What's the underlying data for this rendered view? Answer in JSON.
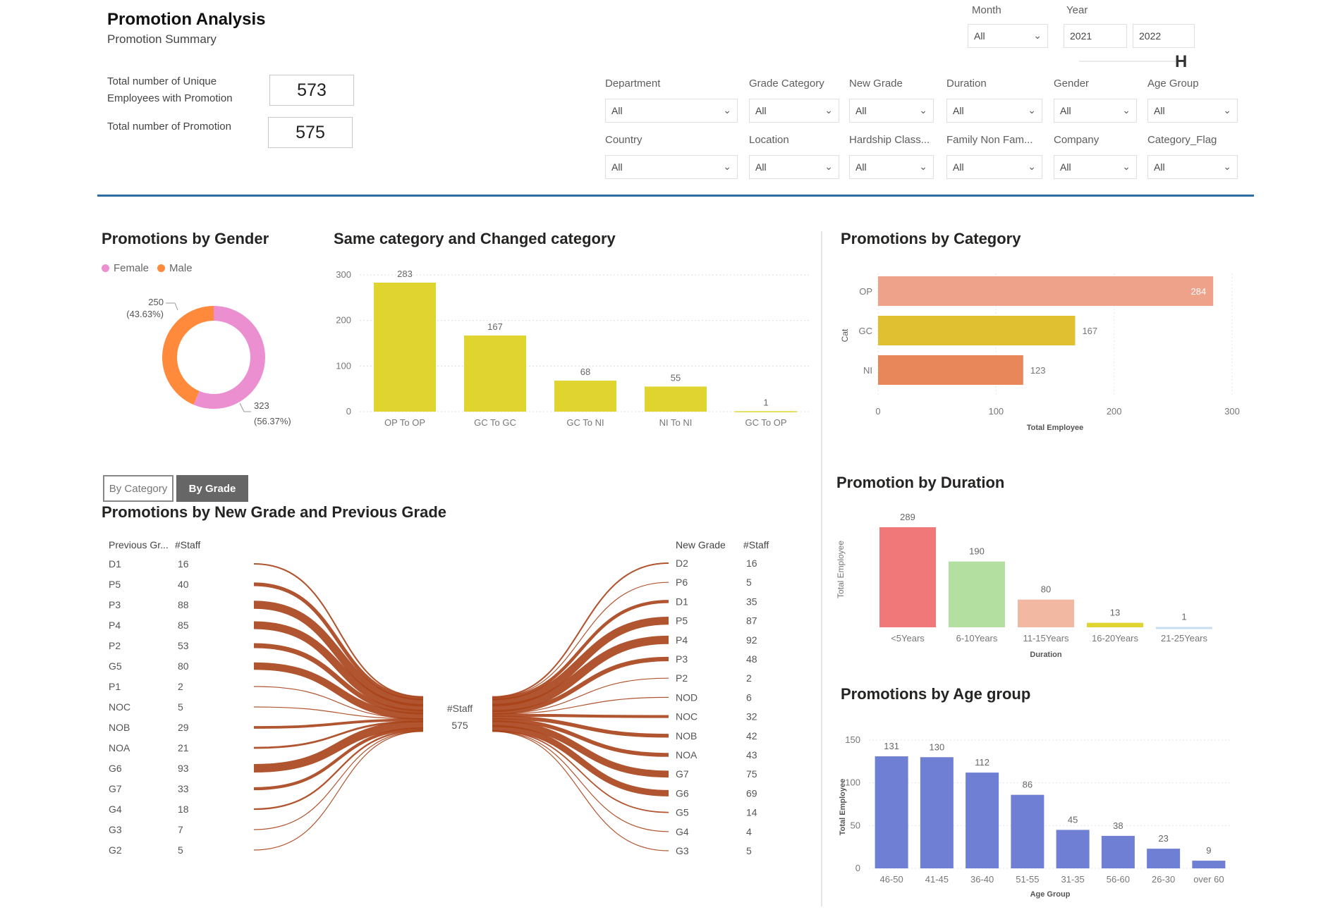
{
  "header": {
    "title": "Promotion Analysis",
    "subtitle": "Promotion Summary",
    "kpis": [
      {
        "label": "Total number of Unique Employees with Promotion",
        "value": "573"
      },
      {
        "label": "Total number of Promotion",
        "value": "575"
      }
    ]
  },
  "filters": {
    "month": {
      "label": "Month",
      "value": "All"
    },
    "year": {
      "label": "Year",
      "from": "2021",
      "to": "2022"
    },
    "row1": [
      {
        "label": "Department",
        "value": "All"
      },
      {
        "label": "Grade Category",
        "value": "All"
      },
      {
        "label": "New Grade",
        "value": "All"
      },
      {
        "label": "Duration",
        "value": "All"
      },
      {
        "label": "Gender",
        "value": "All"
      },
      {
        "label": "Age Group",
        "value": "All"
      }
    ],
    "row2": [
      {
        "label": "Country",
        "value": "All"
      },
      {
        "label": "Location",
        "value": "All"
      },
      {
        "label": "Hardship Class...",
        "value": "All"
      },
      {
        "label": "Family Non Fam...",
        "value": "All"
      },
      {
        "label": "Company",
        "value": "All"
      },
      {
        "label": "Category_Flag",
        "value": "All"
      }
    ]
  },
  "toggle": {
    "by_category": "By Category",
    "by_grade": "By Grade"
  },
  "colors": {
    "accent_line": "#2e6ca4",
    "female": "#ec8fd1",
    "male": "#ff8a3c",
    "yellow": "#e0d530",
    "cat_op": "#eea28a",
    "cat_gc": "#e0c030",
    "cat_ni": "#e8875a",
    "dur": [
      "#f07878",
      "#b3e0a0",
      "#f2b8a2",
      "#e0d530",
      "#c7def0"
    ],
    "age": "#6f7fd3",
    "sankey": "#a9431a"
  },
  "chart_data": [
    {
      "id": "gender",
      "type": "pie",
      "title": "Promotions by Gender",
      "legend": [
        "Female",
        "Male"
      ],
      "slices": [
        {
          "name": "Male",
          "value": 250,
          "label": "250",
          "pct": "(43.63%)"
        },
        {
          "name": "Female",
          "value": 323,
          "label": "323",
          "pct": "(56.37%)"
        }
      ]
    },
    {
      "id": "category_change",
      "type": "bar",
      "title": "Same category and Changed category",
      "categories": [
        "OP To OP",
        "GC To GC",
        "GC To NI",
        "NI To NI",
        "GC To OP"
      ],
      "values": [
        283,
        167,
        68,
        55,
        1
      ],
      "ylim": [
        0,
        300
      ],
      "yticks": [
        "0",
        "100",
        "200",
        "300"
      ],
      "grid": true
    },
    {
      "id": "by_category",
      "type": "bar",
      "orientation": "horizontal",
      "title": "Promotions by Category",
      "categories": [
        "OP",
        "GC",
        "NI"
      ],
      "values": [
        284,
        167,
        123
      ],
      "xlabel": "Total Employee",
      "ylabel": "Cat",
      "xlim": [
        0,
        300
      ],
      "xticks": [
        "0",
        "100",
        "200",
        "300"
      ]
    },
    {
      "id": "duration",
      "type": "bar",
      "title": "Promotion by Duration",
      "categories": [
        "<5Years",
        "6-10Years",
        "11-15Years",
        "16-20Years",
        "21-25Years"
      ],
      "values": [
        289,
        190,
        80,
        13,
        1
      ],
      "xlabel": "Duration",
      "ylabel": "Total Employee"
    },
    {
      "id": "age",
      "type": "bar",
      "title": "Promotions by Age group",
      "categories": [
        "46-50",
        "41-45",
        "36-40",
        "51-55",
        "31-35",
        "56-60",
        "26-30",
        "over 60"
      ],
      "values": [
        131,
        130,
        112,
        86,
        45,
        38,
        23,
        9
      ],
      "xlabel": "Age Group",
      "ylabel": "Total Employee",
      "ylim": [
        0,
        150
      ],
      "yticks": [
        "0",
        "50",
        "100",
        "150"
      ]
    },
    {
      "id": "grade_flow",
      "type": "sankey",
      "title": "Promotions by New Grade and Previous Grade",
      "left_header": [
        "Previous Gr...",
        "#Staff"
      ],
      "right_header": [
        "New Grade",
        "#Staff"
      ],
      "center": {
        "label": "#Staff",
        "value": "575"
      },
      "previous": [
        {
          "grade": "D1",
          "staff": 16
        },
        {
          "grade": "P5",
          "staff": 40
        },
        {
          "grade": "P3",
          "staff": 88
        },
        {
          "grade": "P4",
          "staff": 85
        },
        {
          "grade": "P2",
          "staff": 53
        },
        {
          "grade": "G5",
          "staff": 80
        },
        {
          "grade": "P1",
          "staff": 2
        },
        {
          "grade": "NOC",
          "staff": 5
        },
        {
          "grade": "NOB",
          "staff": 29
        },
        {
          "grade": "NOA",
          "staff": 21
        },
        {
          "grade": "G6",
          "staff": 93
        },
        {
          "grade": "G7",
          "staff": 33
        },
        {
          "grade": "G4",
          "staff": 18
        },
        {
          "grade": "G3",
          "staff": 7
        },
        {
          "grade": "G2",
          "staff": 5
        }
      ],
      "new": [
        {
          "grade": "D2",
          "staff": 16
        },
        {
          "grade": "P6",
          "staff": 5
        },
        {
          "grade": "D1",
          "staff": 35
        },
        {
          "grade": "P5",
          "staff": 87
        },
        {
          "grade": "P4",
          "staff": 92
        },
        {
          "grade": "P3",
          "staff": 48
        },
        {
          "grade": "P2",
          "staff": 2
        },
        {
          "grade": "NOD",
          "staff": 6
        },
        {
          "grade": "NOC",
          "staff": 32
        },
        {
          "grade": "NOB",
          "staff": 42
        },
        {
          "grade": "NOA",
          "staff": 43
        },
        {
          "grade": "G7",
          "staff": 75
        },
        {
          "grade": "G6",
          "staff": 69
        },
        {
          "grade": "G5",
          "staff": 14
        },
        {
          "grade": "G4",
          "staff": 4
        },
        {
          "grade": "G3",
          "staff": 5
        }
      ]
    }
  ]
}
